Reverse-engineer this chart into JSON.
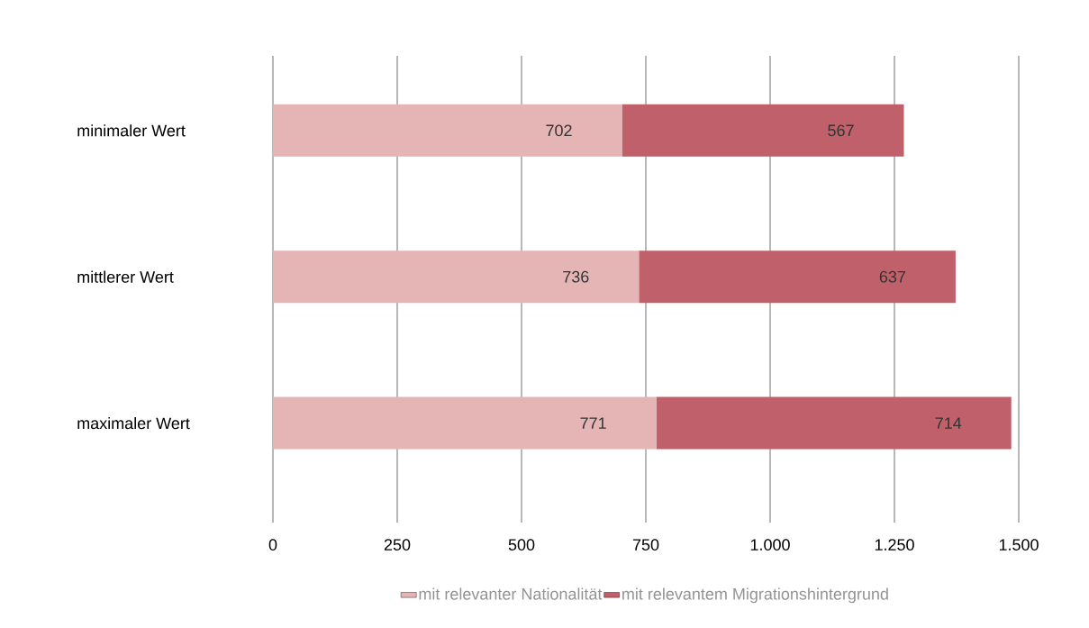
{
  "chart_data": {
    "type": "bar",
    "orientation": "horizontal",
    "stacked": true,
    "categories": [
      "minimaler Wert",
      "mittlerer Wert",
      "maximaler Wert"
    ],
    "series": [
      {
        "name": "mit relevanter Nationalität",
        "color": "#e5b5b5",
        "values": [
          702,
          736,
          771
        ]
      },
      {
        "name": "mit relevantem Migrationshintergrund",
        "color": "#c0606a",
        "values": [
          567,
          637,
          714
        ]
      }
    ],
    "xlim": [
      0,
      1500
    ],
    "xticks": [
      0,
      250,
      500,
      750,
      {
        "value": 1000,
        "label": "1.000"
      },
      {
        "value": 1250,
        "label": "1.250"
      },
      {
        "value": 1500,
        "label": "1.500"
      }
    ],
    "grid": "x",
    "legend": "bottom",
    "data_labels": true
  }
}
